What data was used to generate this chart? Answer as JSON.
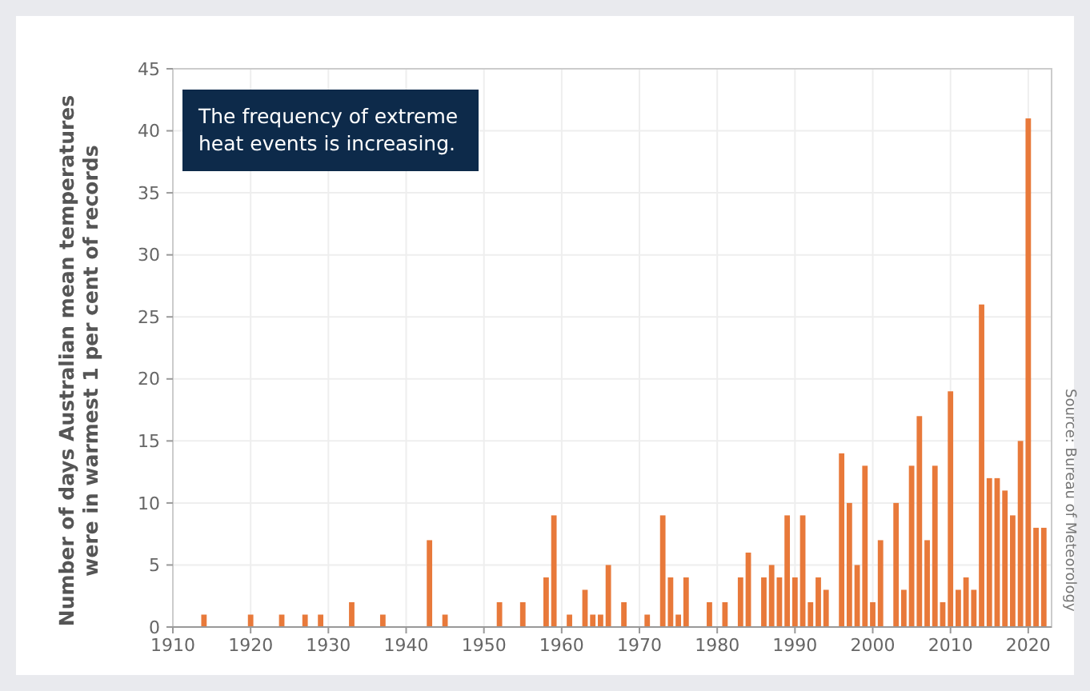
{
  "chart_data": {
    "type": "bar",
    "ylabel": "Number of days Australian mean temperatures\nwere in warmest 1 per cent of records",
    "x": [
      1914,
      1920,
      1924,
      1927,
      1929,
      1933,
      1937,
      1943,
      1945,
      1952,
      1955,
      1958,
      1959,
      1961,
      1963,
      1964,
      1965,
      1966,
      1968,
      1971,
      1973,
      1974,
      1975,
      1976,
      1979,
      1981,
      1983,
      1984,
      1986,
      1987,
      1988,
      1989,
      1990,
      1991,
      1992,
      1993,
      1994,
      1996,
      1997,
      1998,
      1999,
      2000,
      2001,
      2003,
      2004,
      2005,
      2006,
      2007,
      2008,
      2009,
      2010,
      2011,
      2012,
      2013,
      2014,
      2015,
      2016,
      2017,
      2018,
      2019,
      2020,
      2021,
      2022
    ],
    "values": [
      1,
      1,
      1,
      1,
      1,
      2,
      1,
      7,
      1,
      2,
      2,
      4,
      9,
      1,
      3,
      1,
      1,
      5,
      2,
      1,
      9,
      4,
      1,
      4,
      2,
      2,
      4,
      6,
      4,
      5,
      4,
      9,
      4,
      9,
      2,
      4,
      3,
      14,
      10,
      5,
      13,
      2,
      7,
      10,
      3,
      13,
      17,
      7,
      13,
      2,
      19,
      3,
      4,
      3,
      26,
      12,
      12,
      11,
      9,
      15,
      41,
      8,
      8
    ],
    "color": "#e8793a",
    "xlim": [
      1910,
      2023
    ],
    "xticks": [
      1910,
      1920,
      1930,
      1940,
      1950,
      1960,
      1970,
      1980,
      1990,
      2000,
      2010,
      2020
    ],
    "ylim": [
      0,
      45
    ],
    "yticks": [
      0,
      5,
      10,
      15,
      20,
      25,
      30,
      35,
      40,
      45
    ],
    "grid": true,
    "annotations": [
      "The frequency of extreme\nheat events is increasing.",
      "Source: Bureau of Meteorology"
    ]
  }
}
